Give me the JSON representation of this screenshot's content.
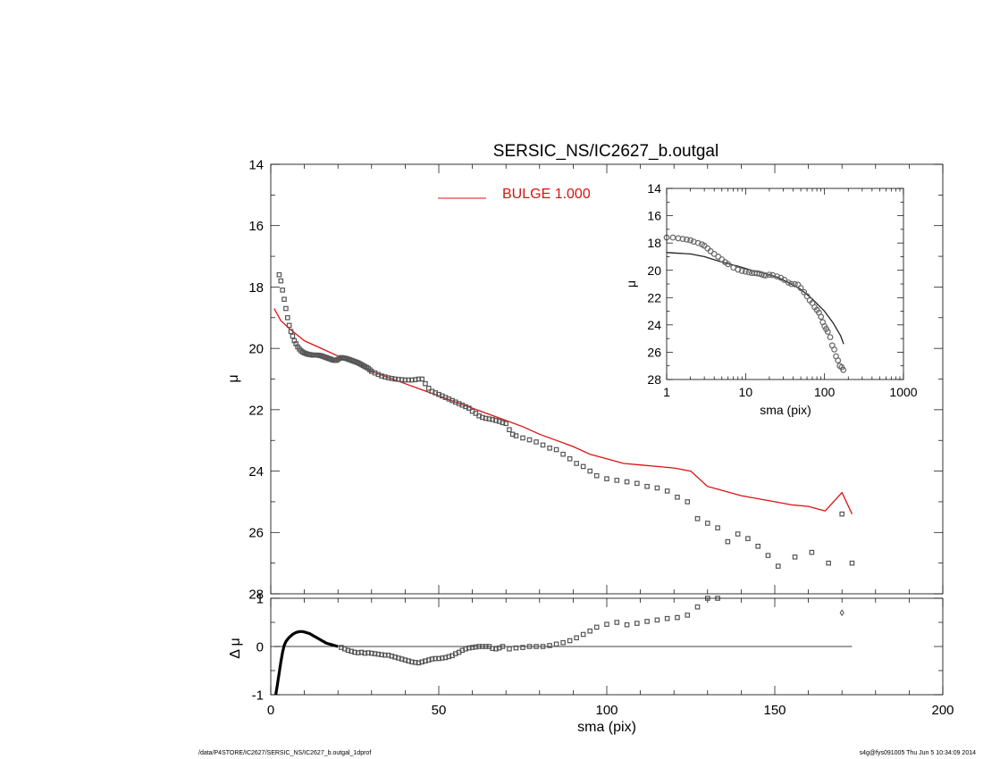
{
  "chart_data": [
    {
      "id": "main",
      "type": "scatter",
      "title": "SERSIC_NS/IC2627_b.outgal",
      "xlabel": "",
      "ylabel": "μ",
      "xlim": [
        0,
        200
      ],
      "ylim": [
        28,
        14
      ],
      "y_inverted": true,
      "yticks": [
        "14",
        "16",
        "18",
        "20",
        "22",
        "24",
        "26",
        "28"
      ],
      "legend": {
        "position": "top-center",
        "label": "BULGE  1.000",
        "color": "#dd1111"
      },
      "series": [
        {
          "name": "data",
          "style": "open-square-markers",
          "color": "#555555",
          "x": [
            2.5,
            3.0,
            3.5,
            4.0,
            4.5,
            5.0,
            5.5,
            6.0,
            6.5,
            7.0,
            7.5,
            8.0,
            8.5,
            9.0,
            9.5,
            10.0,
            10.5,
            11.0,
            11.5,
            12.0,
            12.5,
            13.0,
            13.5,
            14.0,
            14.5,
            15.0,
            15.5,
            16.0,
            16.5,
            17.0,
            17.5,
            18.0,
            18.5,
            19.0,
            19.5,
            20.0,
            20.5,
            21.0,
            21.5,
            22.0,
            22.5,
            23.0,
            23.5,
            24.0,
            24.5,
            25.0,
            25.5,
            26.0,
            26.5,
            27.0,
            27.5,
            28.0,
            28.5,
            29.0,
            29.5,
            30.0,
            31.0,
            32.0,
            33.0,
            34.0,
            35.0,
            36.0,
            37.0,
            38.0,
            39.0,
            40.0,
            41.0,
            42.0,
            43.0,
            44.0,
            45.0,
            46.0,
            47.0,
            48.0,
            49.0,
            50.0,
            51.0,
            52.0,
            53.0,
            54.0,
            55.0,
            56.0,
            57.0,
            58.0,
            59.0,
            60.0,
            61.0,
            62.0,
            63.0,
            64.0,
            65.0,
            66.0,
            67.0,
            68.0,
            69.0,
            70.0,
            71.0,
            72.0,
            73.0,
            75.0,
            77.0,
            79.0,
            81.0,
            83.0,
            85.0,
            87.0,
            89.0,
            91.0,
            93.0,
            95.0,
            97.0,
            100.0,
            103.0,
            106.0,
            109.0,
            112.0,
            115.0,
            118.0,
            121.0,
            124.0,
            127.0,
            130.0,
            133.0,
            136.0,
            139.0,
            142.0,
            145.0,
            148.0,
            151.0,
            156.0,
            161.0,
            166.0,
            170.0,
            173.0
          ],
          "y": [
            17.6,
            17.8,
            18.1,
            18.4,
            18.7,
            19.0,
            19.25,
            19.45,
            19.6,
            19.75,
            19.85,
            19.95,
            20.02,
            20.08,
            20.12,
            20.15,
            20.17,
            20.19,
            20.2,
            20.21,
            20.22,
            20.22,
            20.22,
            20.22,
            20.23,
            20.24,
            20.26,
            20.28,
            20.3,
            20.32,
            20.34,
            20.36,
            20.38,
            20.39,
            20.39,
            20.36,
            20.32,
            20.3,
            20.31,
            20.32,
            20.33,
            20.35,
            20.37,
            20.39,
            20.41,
            20.43,
            20.45,
            20.47,
            20.5,
            20.53,
            20.56,
            20.59,
            20.62,
            20.65,
            20.7,
            20.75,
            20.8,
            20.85,
            20.9,
            20.93,
            20.96,
            20.98,
            21.0,
            21.01,
            21.02,
            21.03,
            21.03,
            21.03,
            21.02,
            21.0,
            21.0,
            21.15,
            21.3,
            21.4,
            21.45,
            21.5,
            21.55,
            21.6,
            21.65,
            21.7,
            21.75,
            21.8,
            21.85,
            21.9,
            21.95,
            22.05,
            22.12,
            22.2,
            22.25,
            22.28,
            22.3,
            22.32,
            22.35,
            22.38,
            22.42,
            22.45,
            22.65,
            22.8,
            22.85,
            22.92,
            22.98,
            23.05,
            23.15,
            23.25,
            23.3,
            23.45,
            23.6,
            23.75,
            23.85,
            24.0,
            24.15,
            24.25,
            24.3,
            24.35,
            24.4,
            24.5,
            24.55,
            24.65,
            24.85,
            25.0,
            25.55,
            25.7,
            25.85,
            26.3,
            26.05,
            26.2,
            26.45,
            26.75,
            27.1,
            26.8,
            26.65,
            27.0,
            25.4,
            27.0
          ]
        },
        {
          "name": "BULGE model",
          "style": "line",
          "color": "#dd1111",
          "x": [
            1,
            3,
            6,
            10,
            15,
            20,
            25,
            30,
            35,
            40,
            45,
            50,
            55,
            60,
            65,
            70,
            75,
            80,
            85,
            90,
            95,
            100,
            105,
            110,
            115,
            120,
            125,
            130,
            135,
            140,
            145,
            150,
            155,
            160,
            165,
            170,
            173
          ],
          "y": [
            18.7,
            19.1,
            19.4,
            19.75,
            20.0,
            20.25,
            20.5,
            20.75,
            20.95,
            21.15,
            21.35,
            21.55,
            21.75,
            21.95,
            22.15,
            22.35,
            22.55,
            22.8,
            23.0,
            23.2,
            23.45,
            23.6,
            23.75,
            23.8,
            23.85,
            23.9,
            24.0,
            24.5,
            24.65,
            24.8,
            24.9,
            25.0,
            25.1,
            25.15,
            25.3,
            24.7,
            25.4
          ]
        }
      ]
    },
    {
      "id": "residual",
      "type": "scatter",
      "title": "",
      "xlabel": "sma (pix)",
      "ylabel": "Δ μ",
      "xlim": [
        0,
        200
      ],
      "ylim": [
        -1,
        1
      ],
      "xticks": [
        "0",
        "50",
        "100",
        "150",
        "200"
      ],
      "yticks": [
        "-1",
        "0",
        "1"
      ],
      "zero_line": true,
      "series": [
        {
          "name": "residual-curve",
          "style": "thick-line",
          "color": "#000000",
          "x": [
            1.5,
            2,
            2.5,
            3,
            3.5,
            4,
            4.5,
            5,
            5.5,
            6,
            6.5,
            7,
            7.5,
            8,
            8.5,
            9,
            9.5,
            10,
            10.5,
            11,
            11.5,
            12,
            12.5,
            13,
            13.5,
            14,
            14.5,
            15,
            15.5,
            16,
            16.5,
            17,
            17.5,
            18,
            18.5,
            19,
            19.5,
            20
          ],
          "y": [
            -1.0,
            -0.78,
            -0.55,
            -0.32,
            -0.12,
            0.02,
            0.1,
            0.15,
            0.19,
            0.22,
            0.25,
            0.27,
            0.29,
            0.3,
            0.31,
            0.31,
            0.31,
            0.3,
            0.29,
            0.28,
            0.27,
            0.25,
            0.23,
            0.21,
            0.19,
            0.17,
            0.15,
            0.13,
            0.11,
            0.09,
            0.07,
            0.06,
            0.05,
            0.04,
            0.03,
            0.02,
            0.01,
            0.0
          ]
        },
        {
          "name": "residual-points",
          "style": "open-square-markers",
          "color": "#555555",
          "x": [
            21,
            22,
            23,
            24,
            25,
            26,
            27,
            28,
            29,
            30,
            31,
            32,
            33,
            34,
            35,
            36,
            37,
            38,
            39,
            40,
            41,
            42,
            43,
            44,
            45,
            46,
            47,
            48,
            49,
            50,
            51,
            52,
            53,
            54,
            55,
            56,
            57,
            58,
            59,
            60,
            61,
            62,
            63,
            64,
            65,
            66,
            67,
            68,
            69,
            71,
            73,
            75,
            77,
            79,
            81,
            83,
            85,
            87,
            89,
            91,
            93,
            95,
            97,
            100,
            103,
            106,
            109,
            112,
            115,
            118,
            121,
            124,
            127,
            130,
            133
          ],
          "y": [
            -0.02,
            -0.05,
            -0.08,
            -0.1,
            -0.12,
            -0.13,
            -0.12,
            -0.14,
            -0.13,
            -0.14,
            -0.15,
            -0.16,
            -0.17,
            -0.18,
            -0.18,
            -0.2,
            -0.22,
            -0.24,
            -0.26,
            -0.28,
            -0.3,
            -0.32,
            -0.33,
            -0.34,
            -0.32,
            -0.3,
            -0.28,
            -0.26,
            -0.25,
            -0.25,
            -0.24,
            -0.23,
            -0.21,
            -0.19,
            -0.15,
            -0.12,
            -0.08,
            -0.05,
            -0.03,
            -0.02,
            -0.01,
            0.0,
            0.0,
            0.0,
            0.0,
            -0.04,
            -0.05,
            -0.03,
            0.0,
            -0.05,
            -0.03,
            -0.02,
            0.0,
            0.0,
            0.0,
            0.02,
            0.05,
            0.08,
            0.12,
            0.18,
            0.25,
            0.32,
            0.4,
            0.46,
            0.5,
            0.45,
            0.48,
            0.52,
            0.55,
            0.58,
            0.6,
            0.65,
            0.82,
            1.0,
            1.0
          ]
        },
        {
          "name": "residual-outlier",
          "style": "diamond-marker",
          "color": "#555555",
          "x": [
            170
          ],
          "y": [
            0.7
          ]
        }
      ]
    },
    {
      "id": "inset",
      "type": "scatter",
      "title": "",
      "xlabel": "sma (pix)",
      "ylabel": "μ",
      "xscale": "log",
      "xlim": [
        1,
        1000
      ],
      "ylim": [
        28,
        14
      ],
      "y_inverted": true,
      "xticks": [
        "1",
        "10",
        "100",
        "1000"
      ],
      "yticks": [
        "14",
        "16",
        "18",
        "20",
        "22",
        "24",
        "26",
        "28"
      ],
      "series": [
        {
          "name": "data",
          "style": "open-circle-markers",
          "color": "#666666",
          "x": [
            1.0,
            1.2,
            1.4,
            1.6,
            1.8,
            2.0,
            2.2,
            2.5,
            2.8,
            3.0,
            3.3,
            3.6,
            4.0,
            4.5,
            5.0,
            5.5,
            6.0,
            7.0,
            8.0,
            9.0,
            10.0,
            11.0,
            12.0,
            13.0,
            14.0,
            15.0,
            16.0,
            17.0,
            18.0,
            20.0,
            22.0,
            25.0,
            28.0,
            31.0,
            35.0,
            38.0,
            42.0,
            46.0,
            50.0,
            55.0,
            60.0,
            65.0,
            70.0,
            75.0,
            80.0,
            85.0,
            90.0,
            95.0,
            100.0,
            105.0,
            110.0,
            118.0,
            125.0,
            133.0,
            140.0,
            148.0,
            156.0,
            165.0,
            173.0
          ],
          "y": [
            17.6,
            17.6,
            17.65,
            17.7,
            17.75,
            17.8,
            17.9,
            18.0,
            18.1,
            18.2,
            18.4,
            18.6,
            18.8,
            19.0,
            19.2,
            19.4,
            19.55,
            19.8,
            19.95,
            20.05,
            20.1,
            20.15,
            20.2,
            20.2,
            20.22,
            20.25,
            20.3,
            20.35,
            20.38,
            20.32,
            20.35,
            20.45,
            20.55,
            20.7,
            20.9,
            21.0,
            21.02,
            21.05,
            21.3,
            21.6,
            21.9,
            22.2,
            22.4,
            22.7,
            22.9,
            23.1,
            23.4,
            23.8,
            24.1,
            24.3,
            24.5,
            24.9,
            25.5,
            25.8,
            26.3,
            26.6,
            27.0,
            27.1,
            27.3
          ]
        },
        {
          "name": "model",
          "style": "line",
          "color": "#222222",
          "x": [
            1,
            2,
            3,
            5,
            8,
            12,
            18,
            25,
            35,
            50,
            70,
            100,
            130,
            160,
            175
          ],
          "y": [
            18.7,
            18.8,
            19.0,
            19.4,
            19.7,
            20.0,
            20.25,
            20.5,
            20.9,
            21.4,
            22.1,
            23.0,
            23.9,
            24.8,
            25.4
          ]
        }
      ]
    }
  ],
  "footer": {
    "left": "/data/P4STORE/IC2627/SERSIC_NS/IC2627_b.outgal_1dprof",
    "right": "s4g@fys091005  Thu Jun  5 10:34:09 2014"
  }
}
